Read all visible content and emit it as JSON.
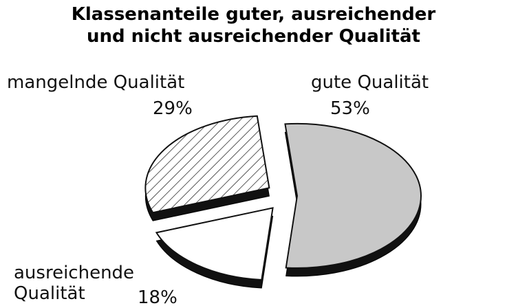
{
  "chart_data": {
    "type": "pie",
    "title": [
      "Klassenanteile guter, ausreichender",
      "und nicht ausreichender Qualität"
    ],
    "categories": [
      "mangelnde Qualität",
      "gute Qualität",
      "ausreichende Qualität"
    ],
    "values": [
      29,
      53,
      18
    ],
    "value_labels": [
      "29%",
      "53%",
      "18%"
    ],
    "colors": [
      "hatch",
      "#c8c8c8",
      "#ffffff"
    ]
  }
}
